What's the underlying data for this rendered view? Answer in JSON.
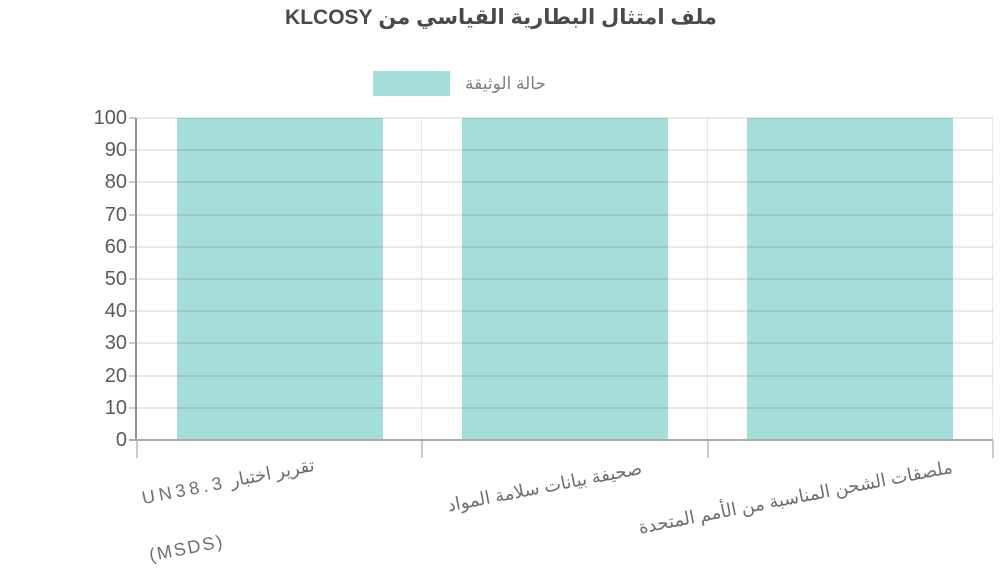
{
  "title": "ملف امتثال البطارية القياسي من KLCOSY",
  "legend": {
    "label": "حالة الوثيقة",
    "swatch_color": "#a5ddda"
  },
  "x_axis": {
    "label_1": "تقرير اختبار UN38.3",
    "label_2_line_1": "صحيفة بيانات سلامة المواد",
    "label_2_line_2": "(MSDS)",
    "label_3": "ملصقات الشحن المناسبة من الأمم المتحدة"
  },
  "chart_data": {
    "type": "bar",
    "title": "ملف امتثال البطارية القياسي من KLCOSY",
    "categories": [
      "تقرير اختبار UN38.3",
      "صحيفة بيانات سلامة المواد (MSDS)",
      "ملصقات الشحن المناسبة من الأمم المتحدة"
    ],
    "series": [
      {
        "name": "حالة الوثيقة",
        "values": [
          100,
          100,
          100
        ]
      }
    ],
    "xlabel": "",
    "ylabel": "",
    "ylim": [
      0,
      100
    ],
    "yticks": [
      0,
      10,
      20,
      30,
      40,
      50,
      60,
      70,
      80,
      90,
      100
    ],
    "grid": true,
    "legend_position": "top",
    "bar_color": "#a5ddda",
    "axis_color": "#9a9a9a",
    "gridline_color": "#e8e8e8",
    "text_color": "#5a5a5a"
  }
}
